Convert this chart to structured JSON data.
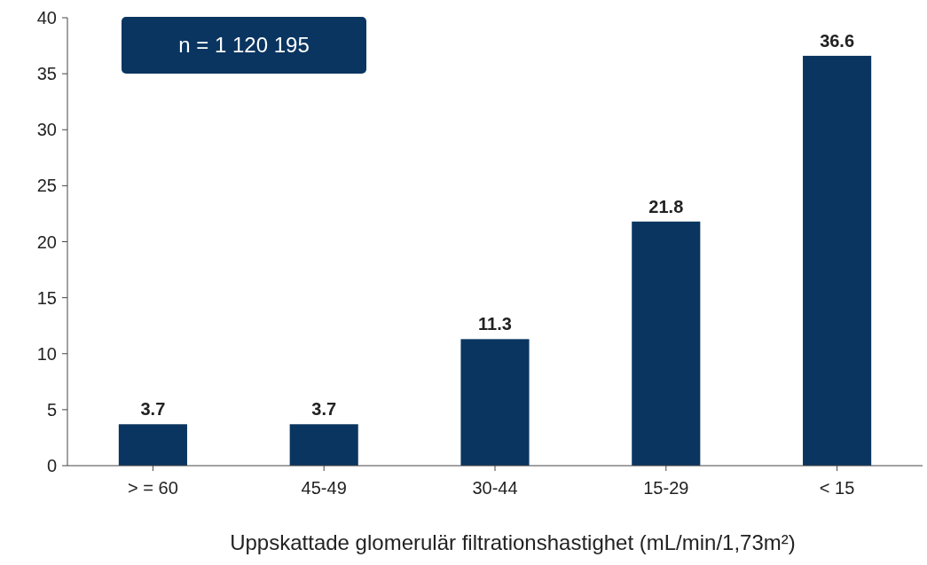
{
  "chart_data": {
    "type": "bar",
    "xlabel": "Uppskattade glomerulär filtrationshastighet (mL/min/1,73m²)",
    "categories": [
      "> = 60",
      "45-49",
      "30-44",
      "15-29",
      "< 15"
    ],
    "values": [
      3.7,
      3.7,
      11.3,
      21.8,
      36.6
    ],
    "color": "#0a3560",
    "ylim": [
      0,
      40
    ],
    "yticks": [
      0,
      5,
      10,
      15,
      20,
      25,
      30,
      35,
      40
    ],
    "grid": false,
    "data_labels": true,
    "annotations": [
      "n = 1 120 195"
    ]
  }
}
